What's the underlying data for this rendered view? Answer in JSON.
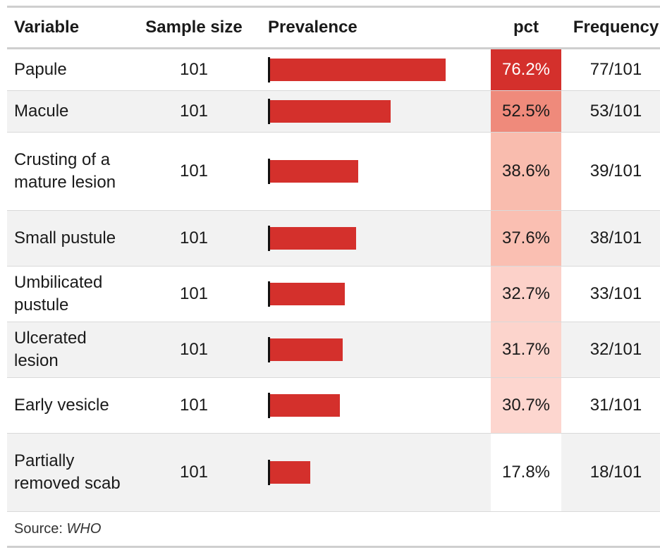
{
  "chart_data": {
    "type": "table",
    "columns": [
      "Variable",
      "Sample size",
      "Prevalence",
      "pct",
      "Frequency"
    ],
    "bar_color": "#d4302c",
    "pct_scale": {
      "low": "#ffffff",
      "high": "#d4302c"
    },
    "rows": [
      {
        "variable": "Papule",
        "n": "101",
        "pct_value": 76.2,
        "pct": "76.2%",
        "freq": "77/101",
        "pct_bg": "#d4302c",
        "pct_fg": "#ffffff"
      },
      {
        "variable": "Macule",
        "n": "101",
        "pct_value": 52.5,
        "pct": "52.5%",
        "freq": "53/101",
        "pct_bg": "#ef8a7b",
        "pct_fg": "#1a1a1a"
      },
      {
        "variable": "Crusting of a mature lesion",
        "n": "101",
        "pct_value": 38.6,
        "pct": "38.6%",
        "freq": "39/101",
        "pct_bg": "#f9bcae",
        "pct_fg": "#1a1a1a"
      },
      {
        "variable": "Small pustule",
        "n": "101",
        "pct_value": 37.6,
        "pct": "37.6%",
        "freq": "38/101",
        "pct_bg": "#fabfb2",
        "pct_fg": "#1a1a1a"
      },
      {
        "variable": "Umbilicated pustule",
        "n": "101",
        "pct_value": 32.7,
        "pct": "32.7%",
        "freq": "33/101",
        "pct_bg": "#fcd1c9",
        "pct_fg": "#1a1a1a"
      },
      {
        "variable": "Ulcerated lesion",
        "n": "101",
        "pct_value": 31.7,
        "pct": "31.7%",
        "freq": "32/101",
        "pct_bg": "#fcd4cc",
        "pct_fg": "#1a1a1a"
      },
      {
        "variable": "Early vesicle",
        "n": "101",
        "pct_value": 30.7,
        "pct": "30.7%",
        "freq": "31/101",
        "pct_bg": "#fdd6cf",
        "pct_fg": "#1a1a1a"
      },
      {
        "variable": "Partially removed scab",
        "n": "101",
        "pct_value": 17.8,
        "pct": "17.8%",
        "freq": "18/101",
        "pct_bg": "#ffffff",
        "pct_fg": "#1a1a1a"
      }
    ],
    "source_label": "Source:",
    "source_value": "WHO"
  }
}
